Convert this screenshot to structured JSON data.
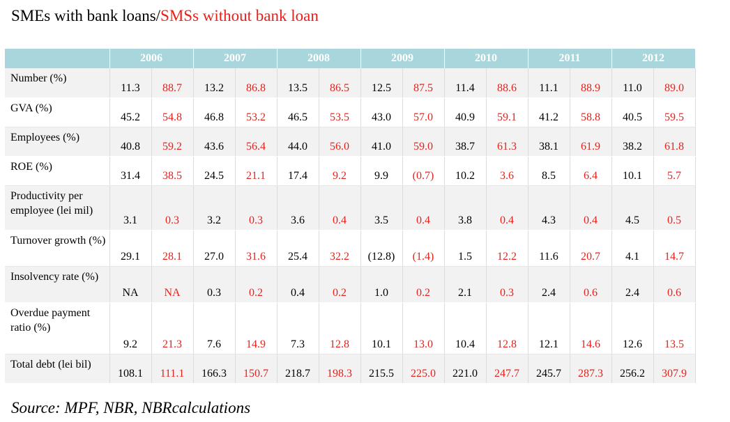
{
  "title": {
    "part1": "SMEs with bank loans/",
    "part2": "SMSs  without bank loan"
  },
  "columns": [
    "2006",
    "2007",
    "2008",
    "2009",
    "2010",
    "2011",
    "2012"
  ],
  "rows": [
    {
      "label": "Number (%)",
      "values": [
        "11.3",
        "88.7",
        "13.2",
        "86.8",
        "13.5",
        "86.5",
        "12.5",
        "87.5",
        "11.4",
        "88.6",
        "11.1",
        "88.9",
        "11.0",
        "89.0"
      ]
    },
    {
      "label": "GVA (%)",
      "values": [
        "45.2",
        "54.8",
        "46.8",
        "53.2",
        "46.5",
        "53.5",
        "43.0",
        "57.0",
        "40.9",
        "59.1",
        "41.2",
        "58.8",
        "40.5",
        "59.5"
      ]
    },
    {
      "label": "Employees (%)",
      "values": [
        "40.8",
        "59.2",
        "43.6",
        "56.4",
        "44.0",
        "56.0",
        "41.0",
        "59.0",
        "38.7",
        "61.3",
        "38.1",
        "61.9",
        "38.2",
        "61.8"
      ]
    },
    {
      "label": "ROE (%)",
      "values": [
        "31.4",
        "38.5",
        "24.5",
        "21.1",
        "17.4",
        "9.2",
        "9.9",
        "(0.7)",
        "10.2",
        "3.6",
        "8.5",
        "6.4",
        "10.1",
        "5.7"
      ]
    },
    {
      "label": "Productivity per employee (lei mil)",
      "values": [
        "3.1",
        "0.3",
        "3.2",
        "0.3",
        "3.6",
        "0.4",
        "3.5",
        "0.4",
        "3.8",
        "0.4",
        "4.3",
        "0.4",
        "4.5",
        "0.5"
      ]
    },
    {
      "label": "Turnover growth (%)",
      "values": [
        "29.1",
        "28.1",
        "27.0",
        "31.6",
        "25.4",
        "32.2",
        "(12.8)",
        "(1.4)",
        "1.5",
        "12.2",
        "11.6",
        "20.7",
        "4.1",
        "14.7"
      ]
    },
    {
      "label": "Insolvency rate (%)",
      "values": [
        "NA",
        "NA",
        "0.3",
        "0.2",
        "0.4",
        "0.2",
        "1.0",
        "0.2",
        "2.1",
        "0.3",
        "2.4",
        "0.6",
        "2.4",
        "0.6"
      ]
    },
    {
      "label": "Overdue payment ratio (%)",
      "values": [
        "9.2",
        "21.3",
        "7.6",
        "14.9",
        "7.3",
        "12.8",
        "10.1",
        "13.0",
        "10.4",
        "12.8",
        "12.1",
        "14.6",
        "12.6",
        "13.5"
      ]
    },
    {
      "label": "Total debt (lei bil)",
      "values": [
        "108.1",
        "111.1",
        "166.3",
        "150.7",
        "218.7",
        "198.3",
        "215.5",
        "225.0",
        "221.0",
        "247.7",
        "245.7",
        "287.3",
        "256.2",
        "307.9"
      ]
    }
  ],
  "source": "Source: MPF, NBR, NBRcalculations",
  "colors": {
    "header_bg": "#a9d6dc",
    "with_loans": "#000000",
    "without_loans": "#e8201b",
    "row_shade": "#f2f2f2"
  }
}
